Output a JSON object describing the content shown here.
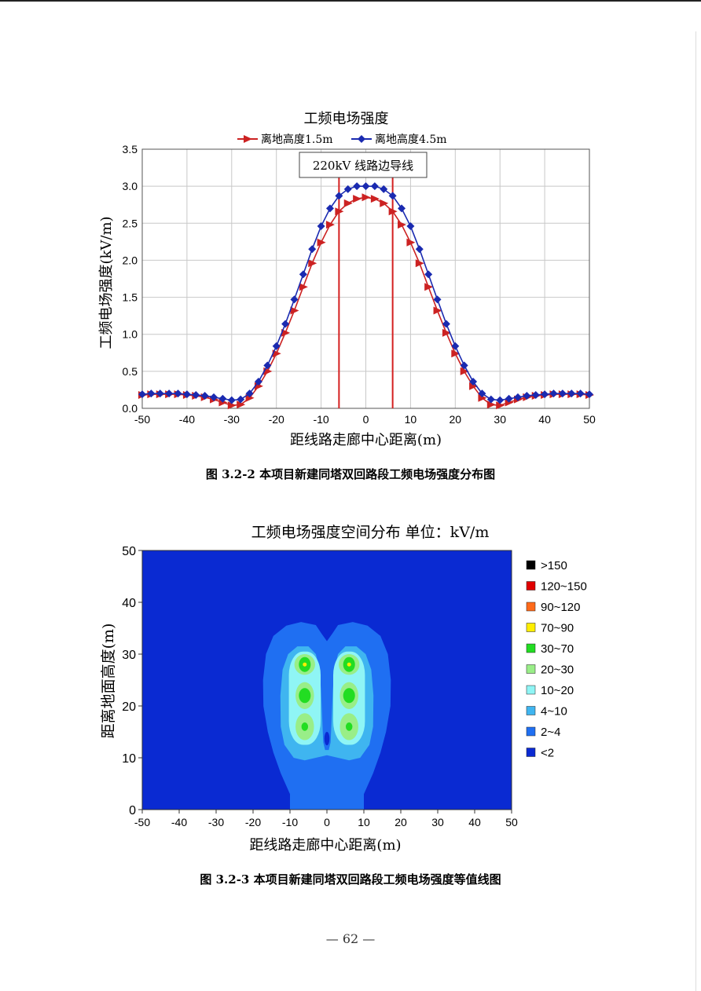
{
  "chart_data": [
    {
      "type": "line",
      "title": "工频电场强度",
      "xlabel": "距线路走廊中心距离(m)",
      "ylabel": "工频电场强度(kV/m)",
      "xlim": [
        -50,
        50
      ],
      "ylim": [
        0,
        3.5
      ],
      "xticks": [
        "-50",
        "-40",
        "-30",
        "-20",
        "-10",
        "0",
        "10",
        "20",
        "30",
        "40",
        "50"
      ],
      "yticks": [
        "0.0",
        "0.5",
        "1.0",
        "1.5",
        "2.0",
        "2.5",
        "3.0",
        "3.5"
      ],
      "grid": true,
      "legend": "top",
      "annotation": "220kV 线路边导线",
      "conductor_lines_x": [
        -6,
        6
      ],
      "x": [
        -50,
        -48,
        -46,
        -44,
        -42,
        -40,
        -38,
        -36,
        -34,
        -32,
        -30,
        -28,
        -26,
        -24,
        -22,
        -20,
        -18,
        -16,
        -14,
        -12,
        -10,
        -8,
        -6,
        -4,
        -2,
        0,
        2,
        4,
        6,
        8,
        10,
        12,
        14,
        16,
        18,
        20,
        22,
        24,
        26,
        28,
        30,
        32,
        34,
        36,
        38,
        40,
        42,
        44,
        46,
        48,
        50
      ],
      "series": [
        {
          "name": "离地高度1.5m",
          "color": "#cc2222",
          "values": [
            0.18,
            0.19,
            0.19,
            0.19,
            0.19,
            0.18,
            0.17,
            0.15,
            0.12,
            0.08,
            0.04,
            0.05,
            0.14,
            0.3,
            0.5,
            0.74,
            1.02,
            1.32,
            1.64,
            1.96,
            2.24,
            2.48,
            2.66,
            2.77,
            2.83,
            2.85,
            2.83,
            2.77,
            2.66,
            2.48,
            2.24,
            1.96,
            1.64,
            1.32,
            1.02,
            0.74,
            0.5,
            0.3,
            0.14,
            0.05,
            0.04,
            0.08,
            0.12,
            0.15,
            0.17,
            0.18,
            0.19,
            0.19,
            0.19,
            0.19,
            0.18
          ]
        },
        {
          "name": "离地高度4.5m",
          "color": "#1a2ab0",
          "values": [
            0.19,
            0.2,
            0.2,
            0.2,
            0.2,
            0.19,
            0.18,
            0.17,
            0.15,
            0.13,
            0.11,
            0.12,
            0.2,
            0.36,
            0.58,
            0.84,
            1.14,
            1.47,
            1.81,
            2.15,
            2.46,
            2.7,
            2.87,
            2.96,
            3.0,
            3.0,
            3.0,
            2.96,
            2.87,
            2.7,
            2.46,
            2.15,
            1.81,
            1.47,
            1.14,
            0.84,
            0.58,
            0.36,
            0.2,
            0.12,
            0.11,
            0.13,
            0.15,
            0.17,
            0.18,
            0.19,
            0.2,
            0.2,
            0.2,
            0.2,
            0.19
          ]
        }
      ]
    },
    {
      "type": "heatmap",
      "title": "工频电场强度空间分布    单位：kV/m",
      "xlabel": "距线路走廊中心距离(m)",
      "ylabel": "距离地面高度(m)",
      "xlim": [
        -50,
        50
      ],
      "ylim": [
        0,
        50
      ],
      "xticks": [
        "-50",
        "-40",
        "-30",
        "-20",
        "-10",
        "0",
        "10",
        "20",
        "30",
        "40",
        "50"
      ],
      "yticks": [
        "0",
        "10",
        "20",
        "30",
        "40",
        "50"
      ],
      "legend": "right",
      "levels": [
        {
          "label": ">150",
          "color": "#000000"
        },
        {
          "label": "120~150",
          "color": "#e00000"
        },
        {
          "label": "90~120",
          "color": "#ff6a1a"
        },
        {
          "label": "70~90",
          "color": "#ffee00"
        },
        {
          "label": "30~70",
          "color": "#22dd22"
        },
        {
          "label": "20~30",
          "color": "#99ee88"
        },
        {
          "label": "10~20",
          "color": "#8ff5f5"
        },
        {
          "label": "4~10",
          "color": "#3fb5f0"
        },
        {
          "label": "2~4",
          "color": "#1f6ff2"
        },
        {
          "label": "<2",
          "color": "#0a2ad2"
        }
      ],
      "field_sources": [
        {
          "x": -6,
          "y": 28
        },
        {
          "x": -6,
          "y": 22
        },
        {
          "x": -6,
          "y": 16
        },
        {
          "x": 6,
          "y": 28
        },
        {
          "x": 6,
          "y": 22
        },
        {
          "x": 6,
          "y": 16
        }
      ]
    }
  ],
  "captions": {
    "fig1": "图 3.2-2    本项目新建同塔双回路段工频电场强度分布图",
    "fig2": "图 3.2-3    本项目新建同塔双回路段工频电场强度等值线图"
  },
  "page_number": "—  62  —"
}
